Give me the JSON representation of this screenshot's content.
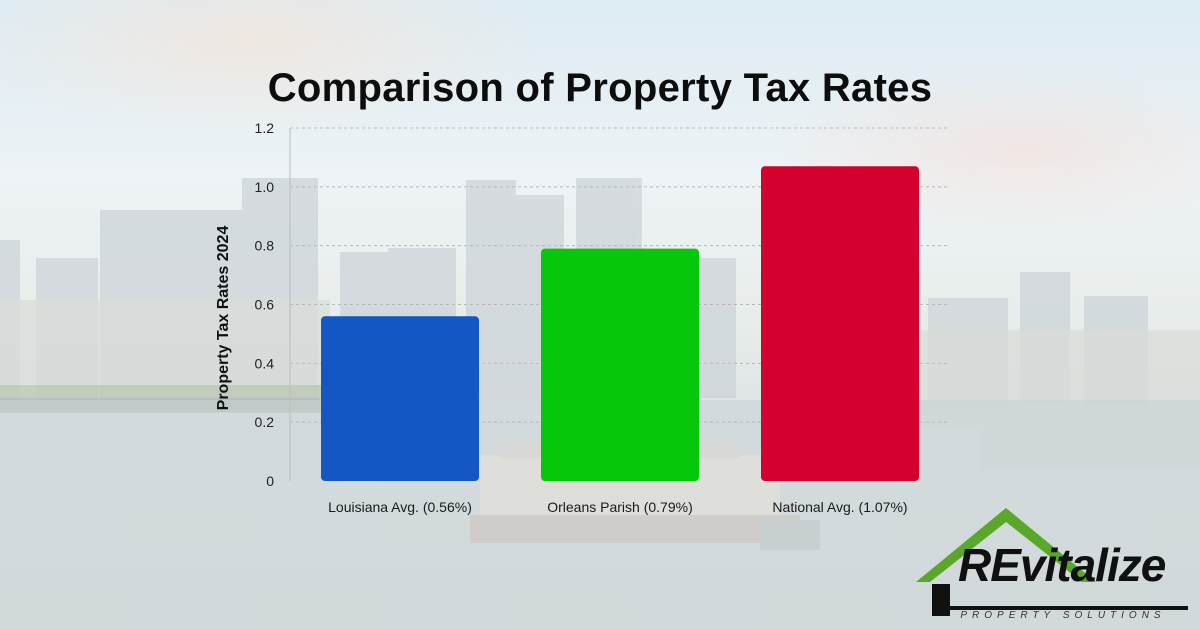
{
  "chart_data": {
    "type": "bar",
    "title": "Comparison of Property Tax Rates",
    "ylabel": "Property Tax Rates 2024",
    "xlabel": "",
    "categories": [
      "Louisiana Avg. (0.56%)",
      "Orleans Parish (0.79%)",
      "National Avg. (1.07%)"
    ],
    "values": [
      0.56,
      0.79,
      1.07
    ],
    "colors": [
      "#1457c4",
      "#06c70a",
      "#d4002e"
    ],
    "ylim": [
      0,
      1.2
    ],
    "yticks": [
      "0",
      "0.2",
      "0.4",
      "0.6",
      "0.8",
      "1.0",
      "1.2"
    ],
    "grid": true
  },
  "logo": {
    "name": "REvitalize",
    "tagline": "PROPERTY SOLUTIONS",
    "accent_color": "#5aa82a"
  }
}
